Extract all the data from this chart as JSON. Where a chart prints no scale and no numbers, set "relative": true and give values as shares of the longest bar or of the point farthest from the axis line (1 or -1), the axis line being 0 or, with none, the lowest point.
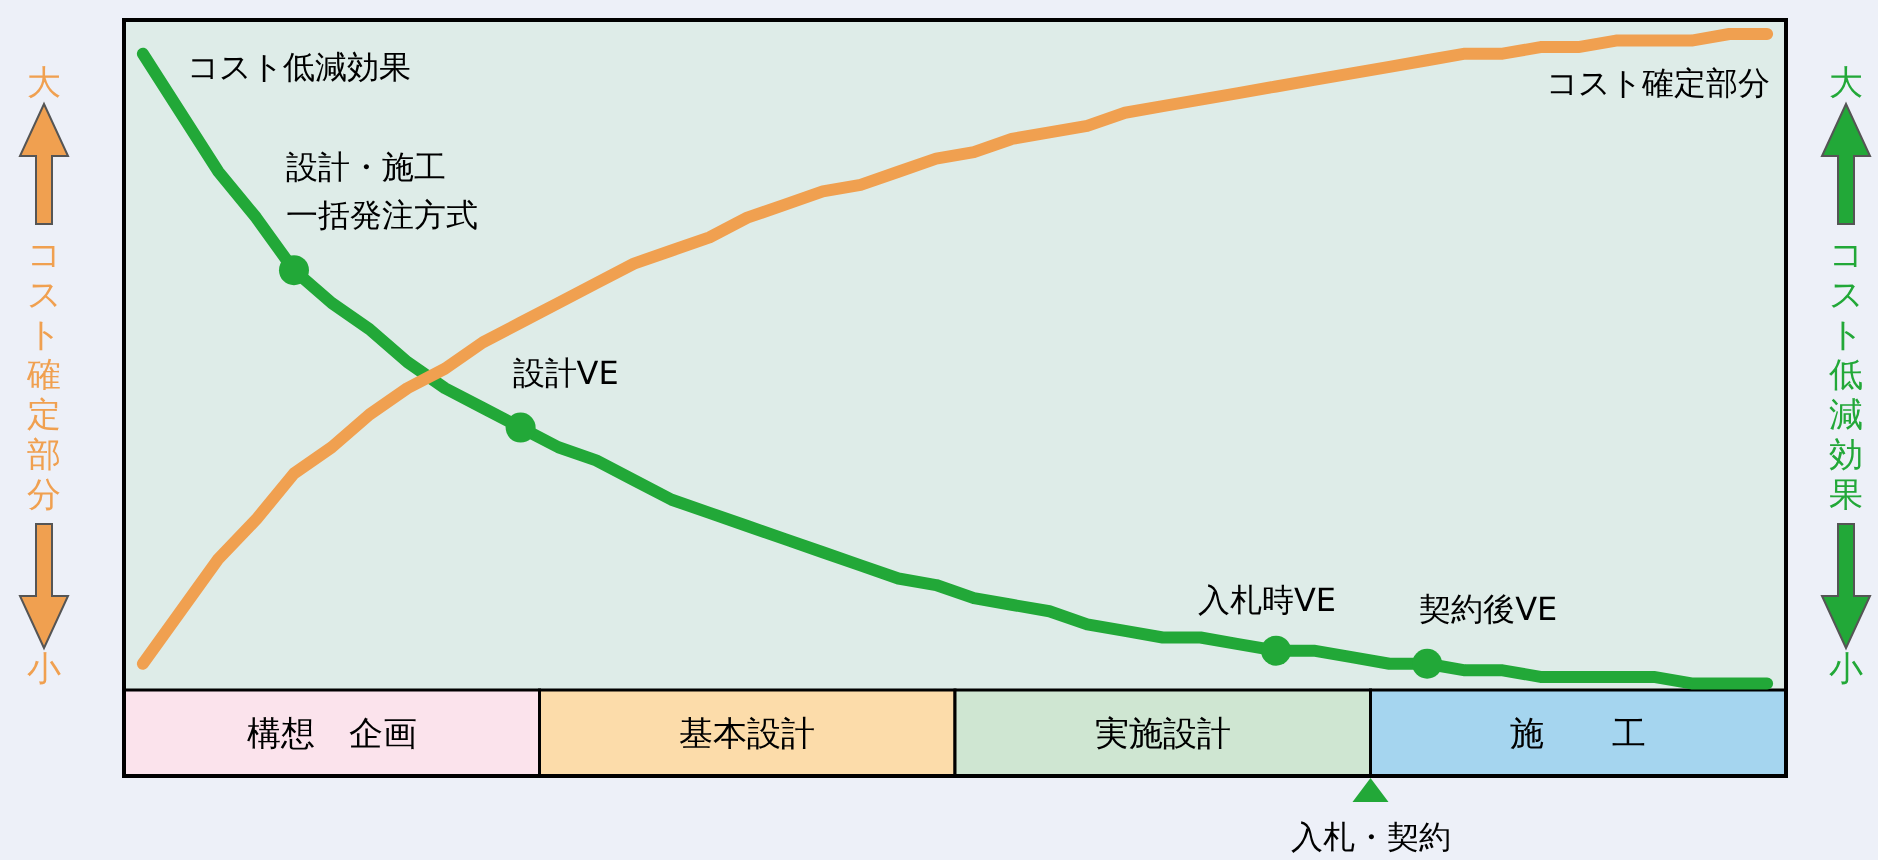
{
  "chart_data": {
    "type": "line",
    "relative": true,
    "tick_labels": "x",
    "ylabel": "コスト確定部分",
    "y2label": "コスト低減効果",
    "categories": [
      null,
      null,
      null,
      null,
      null,
      "構想　企画",
      null,
      null,
      null,
      null,
      null,
      null,
      null,
      null,
      null,
      null,
      "基本設計",
      null,
      null,
      null,
      null,
      null,
      null,
      null,
      null,
      null,
      null,
      "実施設計",
      null,
      null,
      null,
      null,
      null,
      null,
      null,
      null,
      null,
      null,
      "施　　工",
      null,
      null,
      null,
      null,
      null
    ],
    "series": [
      {
        "name": "コスト低減効果",
        "color": "#22a838",
        "values": [
          0.97,
          0.88,
          0.79,
          0.72,
          0.64,
          0.59,
          0.55,
          0.5,
          0.46,
          0.43,
          0.4,
          0.37,
          0.35,
          0.32,
          0.29,
          0.27,
          0.25,
          0.23,
          0.21,
          0.19,
          0.17,
          0.16,
          0.14,
          0.13,
          0.12,
          0.1,
          0.09,
          0.08,
          0.08,
          0.07,
          0.06,
          0.06,
          0.05,
          0.04,
          0.04,
          0.03,
          0.03,
          0.02,
          0.02,
          0.02,
          0.02,
          0.01,
          0.01,
          0.01
        ]
      },
      {
        "name": "コスト確定部分",
        "color": "#f0a050",
        "values": [
          0.04,
          0.12,
          0.2,
          0.26,
          0.33,
          0.37,
          0.42,
          0.46,
          0.49,
          0.53,
          0.56,
          0.59,
          0.62,
          0.65,
          0.67,
          0.69,
          0.72,
          0.74,
          0.76,
          0.77,
          0.79,
          0.81,
          0.82,
          0.84,
          0.85,
          0.86,
          0.88,
          0.89,
          0.9,
          0.91,
          0.92,
          0.93,
          0.94,
          0.95,
          0.96,
          0.97,
          0.97,
          0.98,
          0.98,
          0.99,
          0.99,
          0.99,
          1.0,
          1.0
        ]
      },
      {
        "type": "scatter",
        "color": "#22a838",
        "values": [
          null,
          null,
          null,
          null,
          0.64,
          null,
          null,
          null,
          null,
          null,
          0.4,
          null,
          null,
          null,
          null,
          null,
          null,
          null,
          null,
          null,
          null,
          null,
          null,
          null,
          null,
          null,
          null,
          null,
          null,
          null,
          0.06,
          null,
          null,
          null,
          0.04,
          null,
          null,
          null,
          null,
          null,
          null,
          null,
          null,
          null
        ]
      }
    ],
    "annotations": [
      "設計・施工一括発注方式",
      "設計VE",
      "入札時VE",
      "契約後VE",
      "入札・契約",
      "大",
      "小",
      "大",
      "小"
    ]
  }
}
